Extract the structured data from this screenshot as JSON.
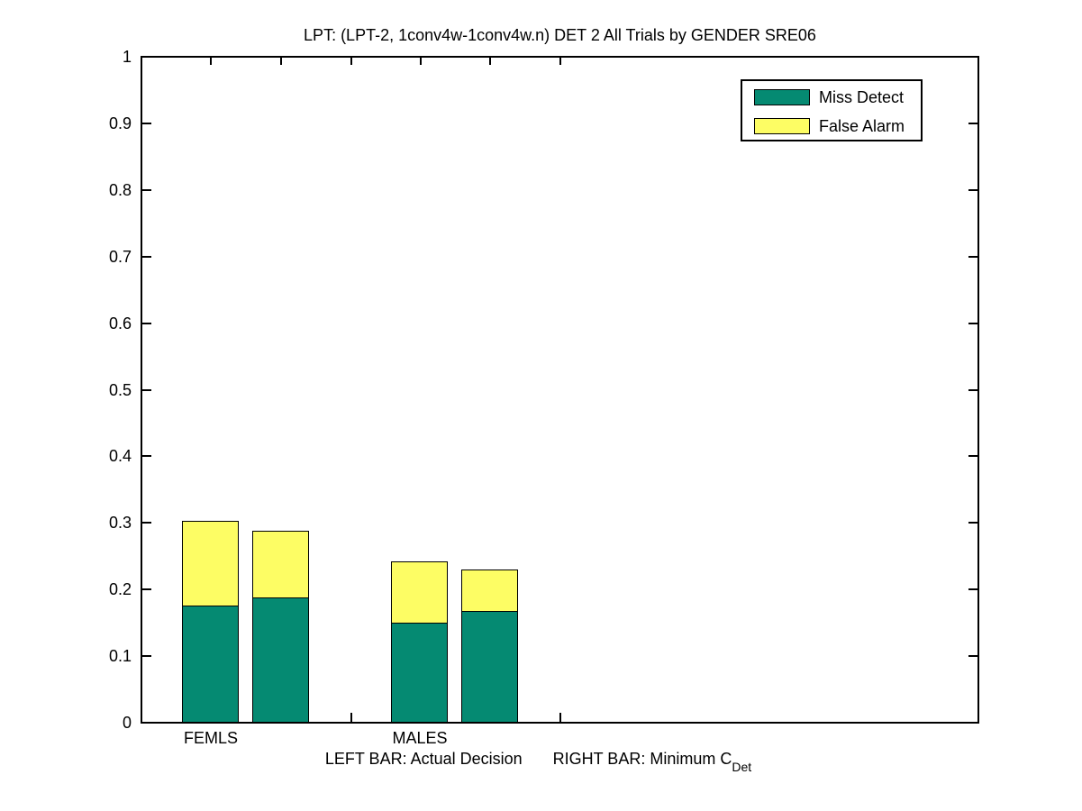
{
  "figure": {
    "background": "#ffffff",
    "edge_color": "#000000"
  },
  "chart_data": {
    "type": "bar",
    "stacked": true,
    "grid": false,
    "title": "LPT: (LPT-2, 1conv4w-1conv4w.n) DET 2 All Trials by GENDER SRE06",
    "categories": [
      "FEMLS",
      "MALES"
    ],
    "bars_per_category": [
      "Actual Decision",
      "Minimum CDet"
    ],
    "series": [
      {
        "name": "Miss Detect",
        "color": "#058a72",
        "values": [
          0.175,
          0.187,
          0.149,
          0.166
        ]
      },
      {
        "name": "False Alarm",
        "color": "#fdfd64",
        "values": [
          0.128,
          0.102,
          0.093,
          0.063
        ]
      }
    ],
    "bar_totals": [
      0.303,
      0.289,
      0.242,
      0.229
    ],
    "ylim": [
      0,
      1
    ],
    "yticks": [
      "0",
      "0.1",
      "0.2",
      "0.3",
      "0.4",
      "0.5",
      "0.6",
      "0.7",
      "0.8",
      "0.9",
      "1"
    ],
    "legend": {
      "position": "top-right"
    }
  },
  "footnote": {
    "left_text": "LEFT BAR: Actual Decision",
    "right_text": "RIGHT BAR: Minimum C",
    "right_subscript": "Det"
  }
}
